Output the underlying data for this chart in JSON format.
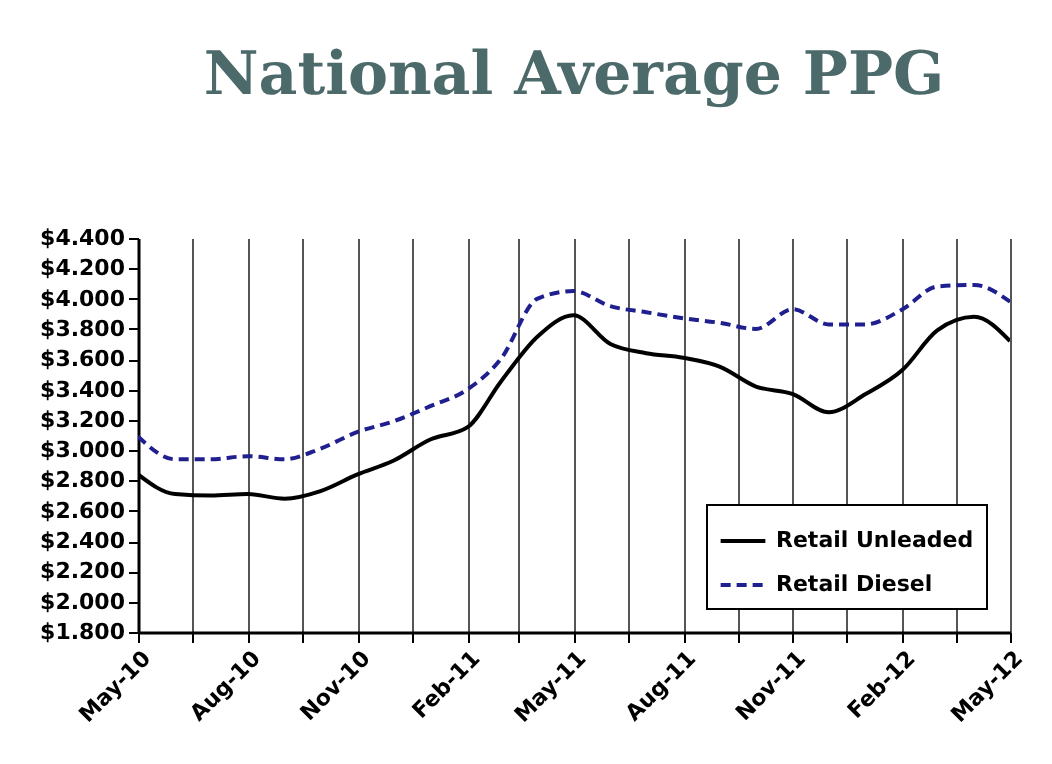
{
  "chart_data": {
    "type": "line",
    "title": "National Average PPG",
    "x": [
      "2010-05",
      "2010-06",
      "2010-07",
      "2010-08",
      "2010-09",
      "2010-10",
      "2010-11",
      "2010-12",
      "2011-01",
      "2011-02",
      "2011-03",
      "2011-04",
      "2011-05",
      "2011-06",
      "2011-07",
      "2011-08",
      "2011-09",
      "2011-10",
      "2011-11",
      "2011-12",
      "2012-01",
      "2012-02",
      "2012-03",
      "2012-04",
      "2012-05"
    ],
    "series": [
      {
        "name": "Retail Unleaded",
        "color": "#000000",
        "line_style": "solid",
        "values": [
          2.84,
          2.71,
          2.7,
          2.71,
          2.68,
          2.73,
          2.84,
          2.93,
          3.07,
          3.15,
          3.45,
          3.75,
          3.89,
          3.7,
          3.64,
          3.61,
          3.55,
          3.42,
          3.37,
          3.25,
          3.37,
          3.53,
          3.79,
          3.88,
          3.72
        ]
      },
      {
        "name": "Retail Diesel",
        "color": "#1f1f8f",
        "line_style": "dashed",
        "values": [
          3.09,
          2.94,
          2.94,
          2.96,
          2.94,
          3.01,
          3.12,
          3.19,
          3.29,
          3.4,
          3.6,
          4.0,
          4.05,
          3.95,
          3.91,
          3.87,
          3.84,
          3.8,
          3.93,
          3.83,
          3.83,
          3.93,
          4.08,
          4.09,
          3.98
        ]
      }
    ],
    "xlim": [
      "2010-05",
      "2012-05"
    ],
    "xticks": [
      {
        "value": "2010-05",
        "label": "May-10"
      },
      {
        "value": "2010-06-16",
        "label": null
      },
      {
        "value": "2010-08",
        "label": "Aug-10"
      },
      {
        "value": "2010-09-16",
        "label": null
      },
      {
        "value": "2010-11",
        "label": "Nov-10"
      },
      {
        "value": "2010-12-16",
        "label": null
      },
      {
        "value": "2011-02",
        "label": "Feb-11"
      },
      {
        "value": "2011-03-16",
        "label": null
      },
      {
        "value": "2011-05",
        "label": "May-11"
      },
      {
        "value": "2011-06-16",
        "label": null
      },
      {
        "value": "2011-08",
        "label": "Aug-11"
      },
      {
        "value": "2011-09-16",
        "label": null
      },
      {
        "value": "2011-11",
        "label": "Nov-11"
      },
      {
        "value": "2011-12-16",
        "label": null
      },
      {
        "value": "2012-02",
        "label": "Feb-12"
      },
      {
        "value": "2012-03-16",
        "label": null
      },
      {
        "value": "2012-05",
        "label": "May-12"
      }
    ],
    "ylim": [
      1.8,
      4.4
    ],
    "yticks": [
      {
        "value": 1.8,
        "label": "$1.800"
      },
      {
        "value": 2.0,
        "label": "$2.000"
      },
      {
        "value": 2.2,
        "label": "$2.200"
      },
      {
        "value": 2.4,
        "label": "$2.400"
      },
      {
        "value": 2.6,
        "label": "$2.600"
      },
      {
        "value": 2.8,
        "label": "$2.800"
      },
      {
        "value": 3.0,
        "label": "$3.000"
      },
      {
        "value": 3.2,
        "label": "$3.200"
      },
      {
        "value": 3.4,
        "label": "$3.400"
      },
      {
        "value": 3.6,
        "label": "$3.600"
      },
      {
        "value": 3.8,
        "label": "$3.800"
      },
      {
        "value": 4.0,
        "label": "$4.000"
      },
      {
        "value": 4.2,
        "label": "$4.200"
      },
      {
        "value": 4.4,
        "label": "$4.400"
      }
    ],
    "grid": "x",
    "legend": "bottom right"
  }
}
